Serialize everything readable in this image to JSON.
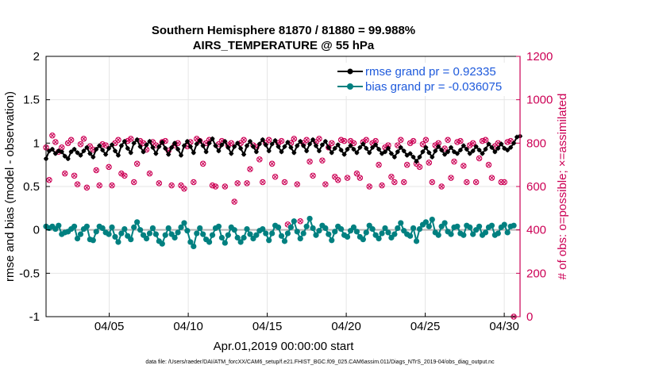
{
  "chart_data": {
    "type": "line",
    "title": "Southern Hemisphere 81870 / 81880 = 99.988%",
    "subtitle": "AIRS_TEMPERATURE @ 55 hPa",
    "xlabel": "Apr.01,2019 00:00:00 start",
    "ylabel": "rmse and bias (model - observation)",
    "ylabel_right": "# of obs: o=possible; ×=assimilated",
    "xlim": [
      1,
      31
    ],
    "ylim": [
      -1,
      2
    ],
    "ylim_right": [
      0,
      1200
    ],
    "x_ticks": [
      5,
      10,
      15,
      20,
      25,
      30
    ],
    "x_tick_labels": [
      "04/05",
      "04/10",
      "04/15",
      "04/20",
      "04/25",
      "04/30"
    ],
    "y_ticks": [
      -1,
      -0.5,
      0,
      0.5,
      1,
      1.5,
      2
    ],
    "y_tick_labels": [
      "-1",
      "-0.5",
      "0",
      "0.5",
      "1",
      "1.5",
      "2"
    ],
    "y_ticks_right": [
      0,
      200,
      400,
      600,
      800,
      1000,
      1200
    ],
    "y_tick_labels_right": [
      "0",
      "200",
      "400",
      "600",
      "800",
      "1000",
      "1200"
    ],
    "legend_position": "top-right",
    "grid": true,
    "colors": {
      "rmse": "#000000",
      "bias": "#008080",
      "obs": "#cc0055",
      "zero_line": "#b4b4b4"
    },
    "legend": [
      "rmse grand pr = 0.92335",
      "bias grand pr = -0.036075"
    ],
    "footnote": "data file: /Users/raeder/DAI/ATM_forcXX/CAM6_setup/f.e21.FHIST_BGC.f09_025.CAM6assim.011/Diags_NTrS_2019-04/obs_diag_output.nc",
    "series": [
      {
        "name": "rmse",
        "values": [
          0.82,
          0.91,
          0.93,
          0.88,
          0.91,
          0.9,
          0.85,
          0.82,
          0.9,
          0.93,
          0.89,
          0.86,
          0.91,
          0.95,
          0.88,
          0.84,
          0.93,
          0.97,
          0.92,
          0.87,
          0.94,
          0.98,
          0.91,
          0.86,
          0.97,
          1.02,
          0.94,
          0.89,
          1.0,
          1.04,
          0.96,
          0.9,
          0.98,
          1.02,
          0.95,
          0.88,
          0.96,
          1.01,
          0.94,
          0.87,
          0.95,
          1.0,
          0.93,
          0.86,
          0.97,
          1.02,
          0.96,
          0.89,
          0.99,
          1.03,
          0.97,
          0.9,
          1.0,
          1.05,
          0.97,
          0.91,
          0.98,
          1.02,
          0.95,
          0.88,
          0.96,
          1.0,
          0.94,
          0.87,
          0.97,
          1.02,
          0.96,
          0.9,
          0.99,
          1.04,
          0.98,
          0.91,
          0.99,
          1.03,
          0.96,
          0.9,
          0.96,
          1.01,
          0.95,
          0.89,
          0.97,
          1.02,
          0.97,
          0.91,
          0.99,
          1.04,
          0.97,
          0.91,
          0.98,
          1.02,
          0.95,
          0.89,
          0.94,
          0.98,
          0.92,
          0.87,
          0.93,
          0.97,
          0.93,
          0.89,
          0.95,
          0.99,
          0.94,
          0.89,
          0.95,
          0.98,
          0.93,
          0.88,
          0.9,
          0.94,
          0.88,
          0.84,
          0.9,
          0.95,
          0.91,
          0.86,
          0.88,
          0.84,
          0.79,
          0.84,
          0.9,
          0.95,
          0.89,
          0.84,
          0.91,
          0.96,
          0.92,
          0.87,
          0.9,
          0.95,
          0.9,
          0.88,
          0.92,
          0.97,
          0.93,
          0.88,
          0.91,
          0.96,
          0.92,
          0.88,
          0.93,
          0.99,
          0.95,
          0.9,
          0.94,
          0.99,
          0.94,
          0.92,
          0.95,
          1.0,
          1.07,
          1.08
        ]
      },
      {
        "name": "bias",
        "values": [
          0.04,
          0.02,
          0.04,
          0.01,
          0.05,
          -0.05,
          -0.03,
          -0.02,
          0.01,
          0.04,
          -0.1,
          -0.05,
          0.01,
          0.04,
          -0.11,
          -0.12,
          -0.02,
          0.04,
          0.02,
          -0.03,
          -0.05,
          0.03,
          -0.08,
          -0.14,
          -0.04,
          0.01,
          -0.07,
          -0.11,
          0.03,
          0.09,
          0.0,
          -0.06,
          -0.1,
          -0.04,
          0.02,
          -0.05,
          -0.13,
          -0.16,
          -0.06,
          0.02,
          -0.05,
          -0.09,
          -0.03,
          0.03,
          0.08,
          -0.01,
          -0.14,
          -0.19,
          -0.04,
          0.02,
          -0.05,
          -0.11,
          -0.14,
          -0.06,
          0.02,
          0.04,
          -0.09,
          -0.15,
          -0.06,
          0.03,
          0.0,
          -0.09,
          -0.14,
          -0.09,
          0.01,
          -0.05,
          -0.1,
          -0.06,
          -0.01,
          0.01,
          -0.04,
          -0.12,
          -0.04,
          0.05,
          0.03,
          -0.07,
          -0.13,
          -0.04,
          0.03,
          0.1,
          -0.02,
          -0.1,
          -0.04,
          0.04,
          0.13,
          0.02,
          -0.06,
          -0.01,
          0.05,
          0.02,
          -0.05,
          -0.12,
          -0.02,
          0.04,
          0.01,
          -0.06,
          -0.08,
          -0.01,
          0.03,
          -0.02,
          -0.08,
          -0.11,
          -0.03,
          0.05,
          0.01,
          -0.06,
          -0.1,
          -0.04,
          0.02,
          -0.03,
          -0.09,
          -0.05,
          0.02,
          0.08,
          -0.01,
          -0.05,
          -0.07,
          0.02,
          -0.13,
          0.01,
          0.06,
          0.09,
          0.04,
          0.12,
          -0.03,
          -0.06,
          0.04,
          0.08,
          -0.02,
          -0.05,
          0.03,
          0.04,
          -0.04,
          -0.06,
          0.05,
          0.03,
          -0.05,
          0.0,
          0.04,
          -0.06,
          -0.03,
          0.03,
          0.05,
          -0.06,
          -0.04,
          0.03,
          0.06,
          -0.03,
          0.04,
          0.05
        ]
      },
      {
        "name": "obs_count",
        "values": [
          780,
          630,
          835,
          805,
          760,
          780,
          660,
          800,
          815,
          650,
          610,
          795,
          820,
          595,
          785,
          770,
          675,
          605,
          795,
          790,
          690,
          605,
          800,
          815,
          660,
          650,
          810,
          820,
          620,
          705,
          810,
          800,
          770,
          660,
          805,
          790,
          615,
          805,
          810,
          765,
          605,
          790,
          800,
          605,
          590,
          785,
          805,
          620,
          820,
          810,
          705,
          800,
          815,
          605,
          600,
          795,
          810,
          600,
          790,
          800,
          530,
          615,
          800,
          815,
          615,
          680,
          790,
          780,
          725,
          620,
          800,
          815,
          705,
          645,
          800,
          810,
          620,
          425,
          800,
          820,
          610,
          440,
          800,
          815,
          715,
          650,
          805,
          820,
          720,
          610,
          780,
          800,
          645,
          630,
          815,
          810,
          640,
          810,
          800,
          660,
          640,
          805,
          815,
          600,
          800,
          810,
          700,
          605,
          780,
          790,
          645,
          620,
          790,
          815,
          620,
          700,
          800,
          810,
          705,
          690,
          795,
          815,
          710,
          620,
          790,
          800,
          600,
          775,
          815,
          640,
          715,
          805,
          810,
          695,
          620,
          790,
          800,
          620,
          730,
          810,
          815,
          700,
          640,
          785,
          800,
          620,
          620,
          805,
          810,
          0
        ]
      }
    ]
  }
}
